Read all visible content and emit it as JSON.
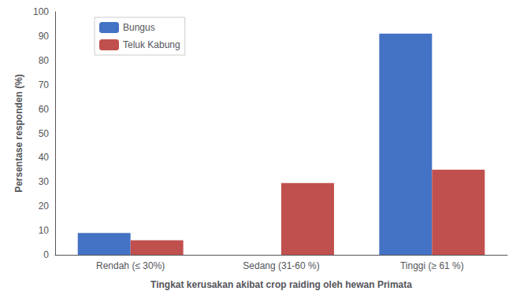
{
  "chart_data": {
    "type": "bar",
    "categories": [
      "Rendah (≤ 30%)",
      "Sedang (31-60 %)",
      "Tinggi (≥ 61 %)"
    ],
    "series": [
      {
        "name": "Bungus",
        "color": "#4472C4",
        "values": [
          9,
          0,
          91
        ]
      },
      {
        "name": "Teluk Kabung",
        "color": "#C0504D",
        "values": [
          6,
          29.5,
          35
        ]
      }
    ],
    "xlabel": "Tingkat kerusakan akibat crop raiding oleh hewan Primata",
    "ylabel": "Persentase responden (%)",
    "ylim": [
      0,
      100
    ],
    "yticks": [
      0,
      10,
      20,
      30,
      40,
      50,
      60,
      70,
      80,
      90,
      100
    ],
    "grid": false,
    "legend": "upper left"
  }
}
